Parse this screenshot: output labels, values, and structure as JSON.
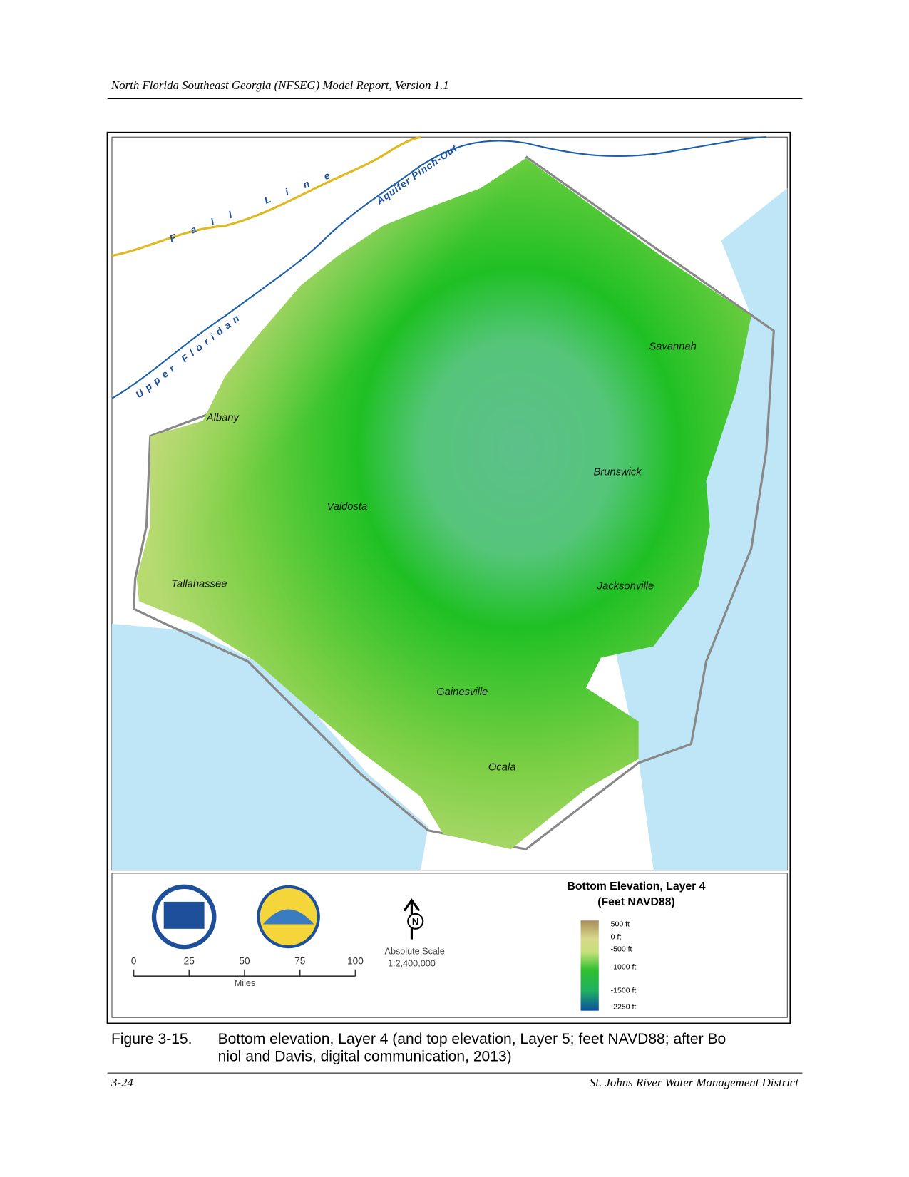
{
  "header": {
    "title": "North Florida Southeast Georgia (NFSEG) Model Report, Version 1.1"
  },
  "map": {
    "lines": [
      {
        "label": "Fall Line"
      },
      {
        "label": "Upper Floridan"
      },
      {
        "label": "Aquifer Pinch-Out"
      }
    ],
    "cities": [
      "Albany",
      "Valdosta",
      "Tallahassee",
      "Savannah",
      "Brunswick",
      "Jacksonville",
      "Gainesville",
      "Ocala"
    ]
  },
  "north_arrow": "N",
  "scale_bar": {
    "ticks": [
      0,
      25,
      50,
      75,
      100
    ],
    "unit": "Miles",
    "scale_title": "Absolute Scale",
    "ratio": "1:2,400,000"
  },
  "legend": {
    "title": [
      "Bottom Elevation, Layer 4",
      "(Feet NAVD88)"
    ],
    "ticks": [
      "500 ft",
      "0 ft",
      "-500 ft",
      "-1000 ft",
      "-1500 ft",
      "-2250 ft"
    ]
  },
  "caption": {
    "number": "Figure 3-15.",
    "lines": [
      "Bottom elevation, Layer 4 (and top elevation, Layer 5; feet NAVD88; after Bo",
      "niol and Davis, digital communication, 2013)"
    ]
  },
  "footer": {
    "page": "3-24",
    "publisher": "St. Johns River Water Management District"
  }
}
